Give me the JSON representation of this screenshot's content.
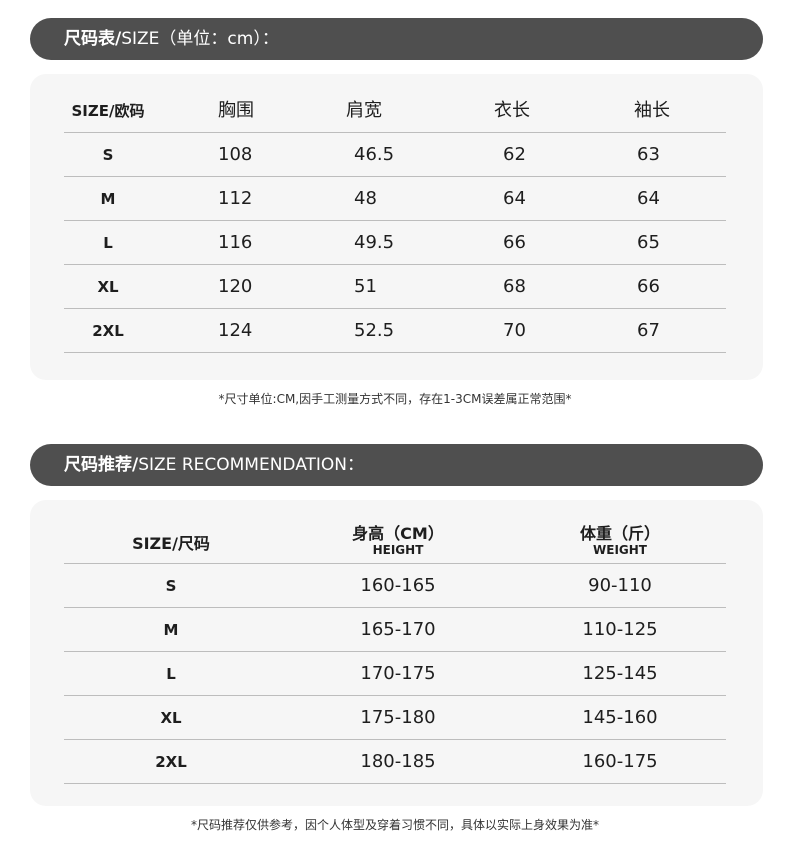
{
  "size_table": {
    "title_bold": "尺码表/",
    "title_rest": "SIZE（单位：cm）：",
    "headers": [
      "SIZE/欧码",
      "胸围",
      "肩宽",
      "衣长",
      "袖长"
    ],
    "rows": [
      [
        "S",
        "108",
        "46.5",
        "62",
        "63"
      ],
      [
        "M",
        "112",
        "48",
        "64",
        "64"
      ],
      [
        "L",
        "116",
        "49.5",
        "66",
        "65"
      ],
      [
        "XL",
        "120",
        "51",
        "68",
        "66"
      ],
      [
        "2XL",
        "124",
        "52.5",
        "70",
        "67"
      ]
    ],
    "note": "*尺寸单位:CM,因手工测量方式不同，存在1-3CM误差属正常范围*"
  },
  "recommendation": {
    "title_bold": "尺码推荐/",
    "title_rest": "SIZE RECOMMENDATION：",
    "headers": [
      {
        "cn": "SIZE/尺码",
        "en": ""
      },
      {
        "cn": "身高（CM）",
        "en": "HEIGHT"
      },
      {
        "cn": "体重（斤）",
        "en": "WEIGHT"
      }
    ],
    "rows": [
      [
        "S",
        "160-165",
        "90-110"
      ],
      [
        "M",
        "165-170",
        "110-125"
      ],
      [
        "L",
        "170-175",
        "125-145"
      ],
      [
        "XL",
        "175-180",
        "145-160"
      ],
      [
        "2XL",
        "180-185",
        "160-175"
      ]
    ],
    "note": "*尺码推荐仅供参考，因个人体型及穿着习惯不同，具体以实际上身效果为准*"
  },
  "colors": {
    "bar": "#4f4f4f",
    "panel": "#f6f6f6",
    "rule": "#bdbdbd"
  }
}
